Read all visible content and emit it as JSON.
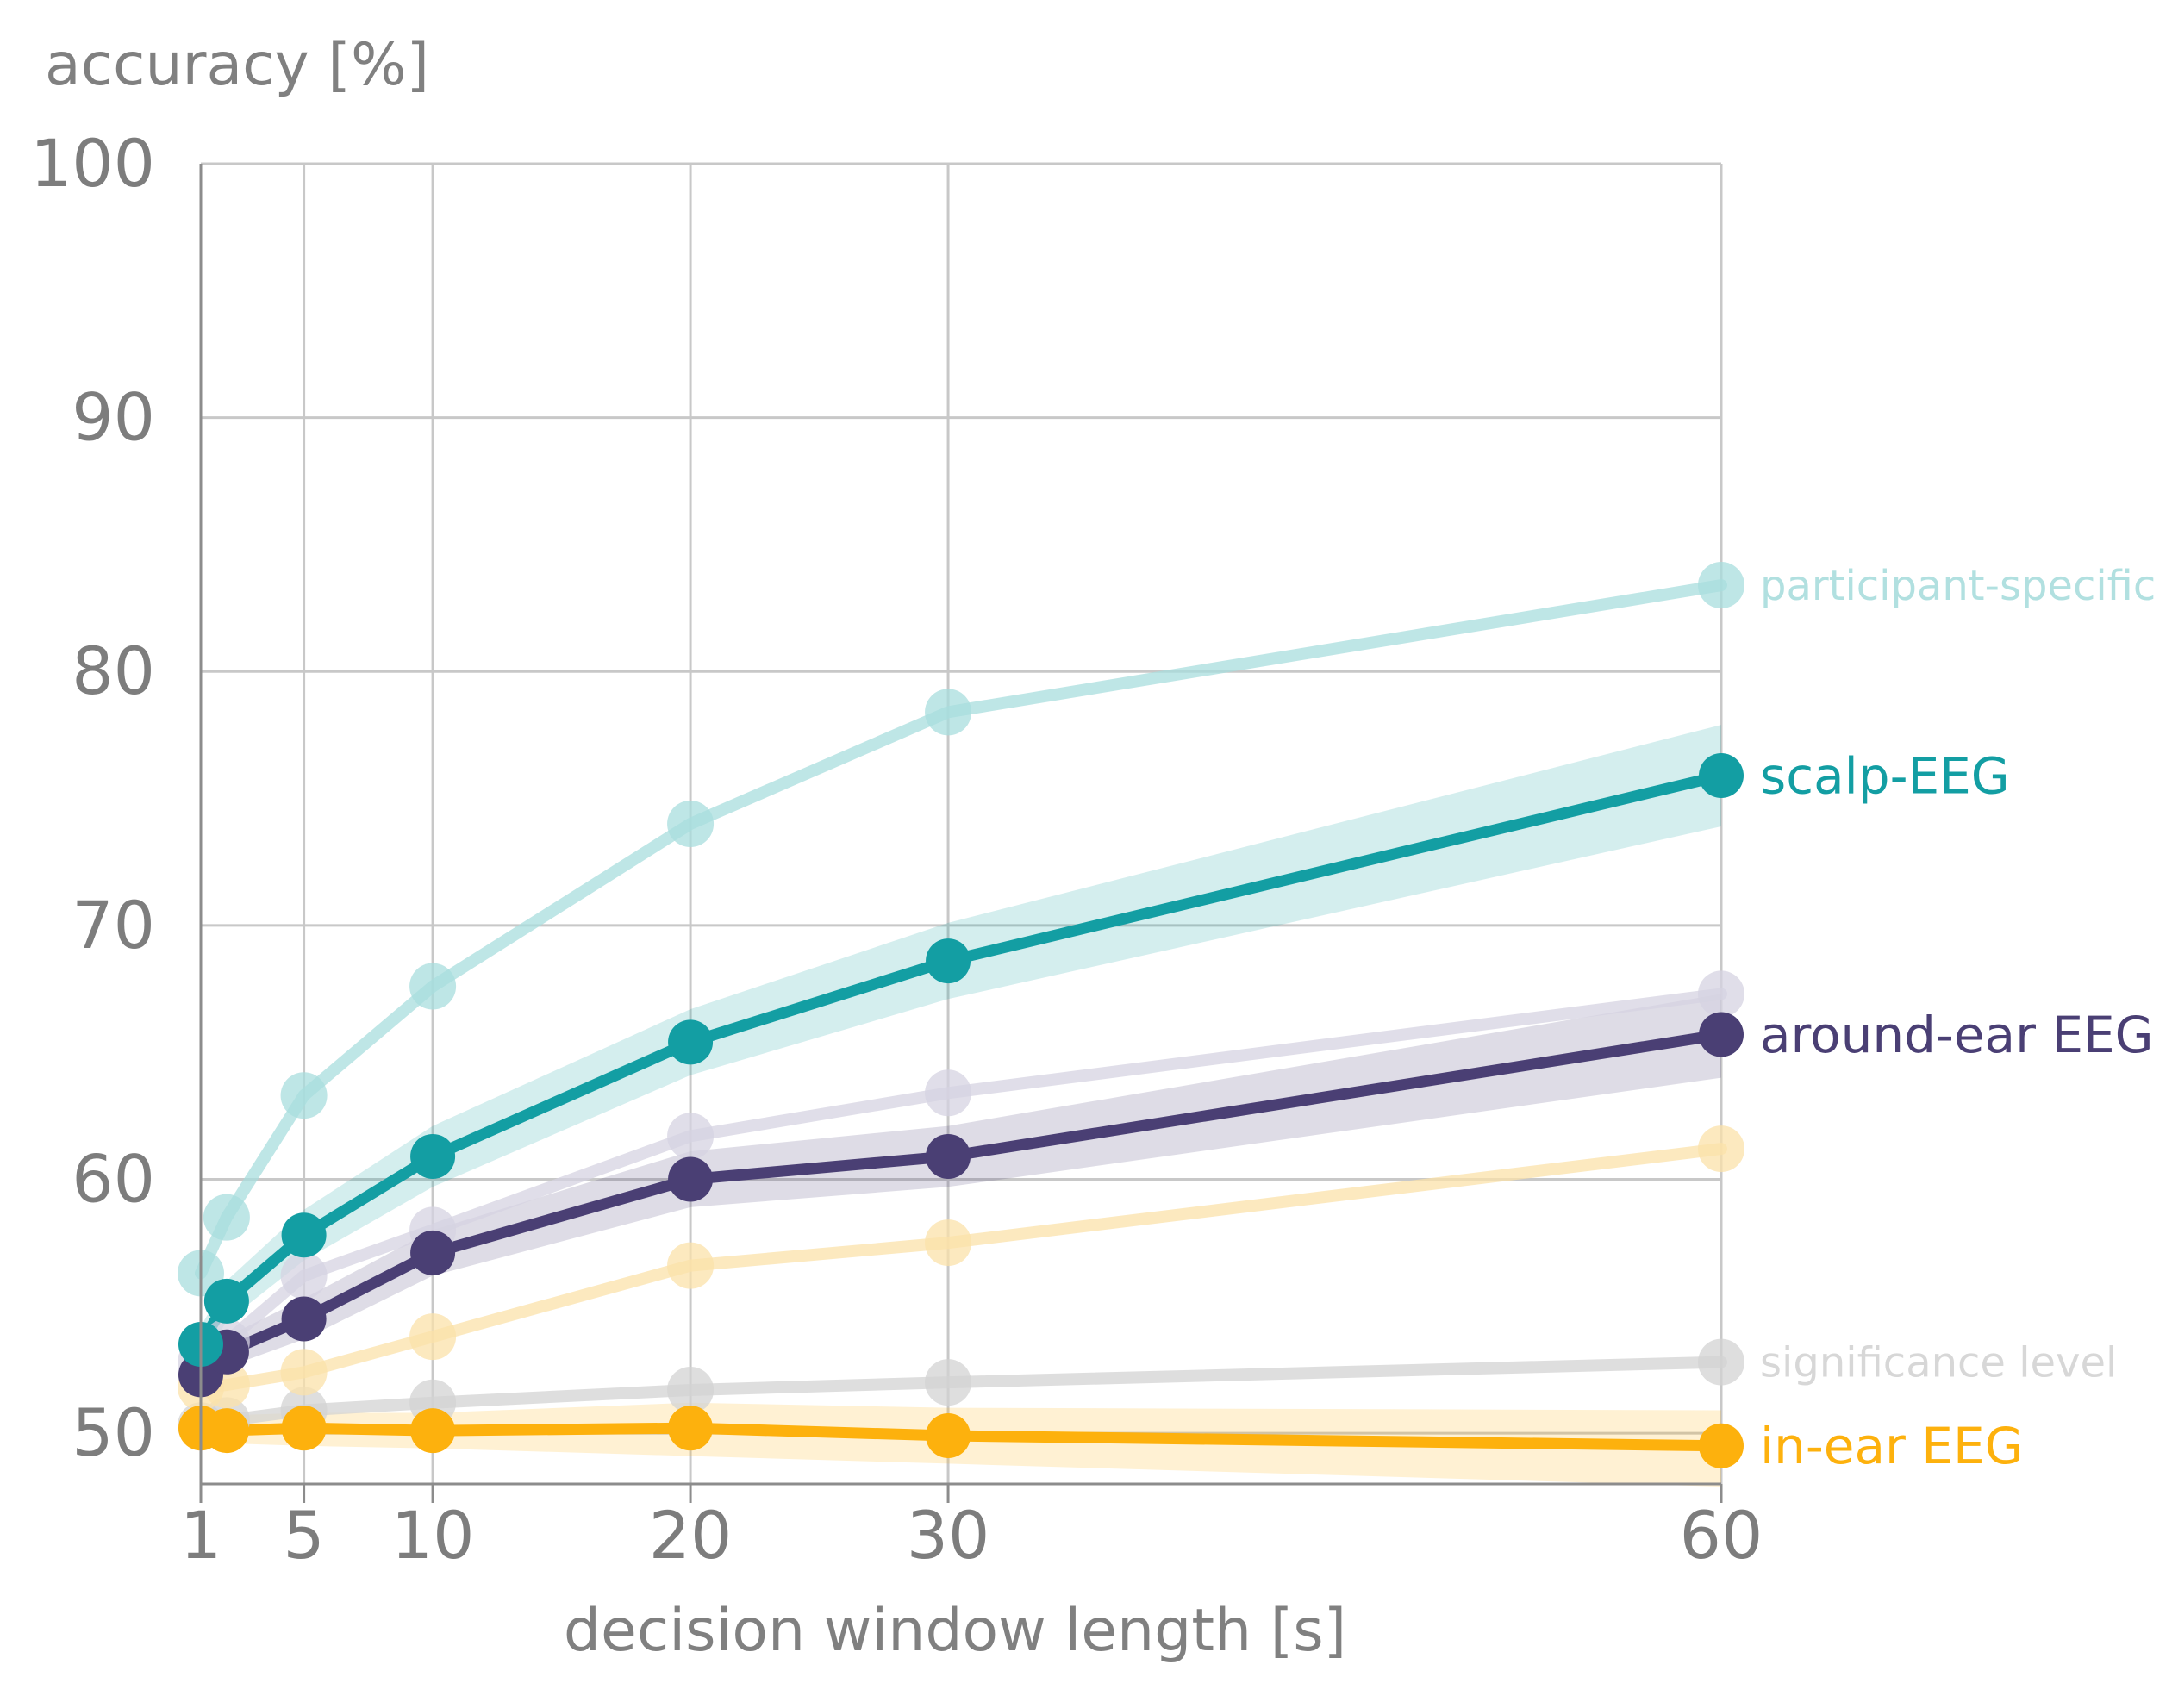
{
  "chart_data": {
    "type": "line",
    "title": "",
    "ylabel": "accuracy [%]",
    "xlabel": "decision window length [s]",
    "xlim": [
      1,
      60
    ],
    "ylim": [
      48,
      100
    ],
    "x": [
      1,
      2,
      5,
      10,
      20,
      30,
      60
    ],
    "xticks": [
      1,
      5,
      10,
      20,
      30,
      60
    ],
    "yticks": [
      50,
      60,
      70,
      80,
      90,
      100
    ],
    "grid": true,
    "series": [
      {
        "name": "significance level",
        "label": "significance level",
        "color": "#d3d3d3",
        "emphasis": "faint",
        "values": [
          50.3,
          50.5,
          50.9,
          51.2,
          51.7,
          52.0,
          52.8
        ],
        "band": null
      },
      {
        "name": "in-ear EEG (participant-specific)",
        "label": "",
        "color": "#fbe1aa",
        "emphasis": "faint",
        "values": [
          51.8,
          51.9,
          52.4,
          53.8,
          56.6,
          57.5,
          61.2
        ],
        "band": null
      },
      {
        "name": "around-ear EEG (participant-specific)",
        "label": "",
        "color": "#d6d3e2",
        "emphasis": "faint",
        "values": [
          52.8,
          53.6,
          56.2,
          58.0,
          61.7,
          63.4,
          67.3
        ],
        "band": null
      },
      {
        "name": "scalp-EEG (participant-specific)",
        "label": "participant-specific",
        "color": "#a8dddd",
        "emphasis": "faint",
        "values": [
          56.3,
          58.5,
          63.3,
          67.6,
          74.0,
          78.4,
          83.4
        ],
        "band": null
      },
      {
        "name": "in-ear EEG",
        "label": "in-ear EEG",
        "color": "#fdb10d",
        "emphasis": "strong",
        "values": [
          50.2,
          50.1,
          50.2,
          50.1,
          50.2,
          49.9,
          49.5
        ],
        "band": {
          "lower": [
            49.7,
            49.6,
            49.5,
            49.4,
            49.1,
            48.8,
            47.9
          ],
          "upper": [
            50.8,
            50.7,
            50.8,
            50.8,
            51.2,
            51.0,
            50.9
          ]
        }
      },
      {
        "name": "around-ear EEG",
        "label": "around-ear EEG",
        "color": "#4a3f74",
        "emphasis": "strong",
        "values": [
          52.3,
          53.2,
          54.5,
          57.1,
          60.0,
          60.9,
          65.7
        ],
        "band": {
          "lower": [
            51.8,
            52.6,
            53.7,
            56.2,
            58.9,
            59.7,
            64.0
          ],
          "upper": [
            52.9,
            53.8,
            55.3,
            58.0,
            61.1,
            62.1,
            67.3
          ]
        }
      },
      {
        "name": "scalp-EEG",
        "label": "scalp-EEG",
        "color": "#139ea3",
        "emphasis": "strong",
        "values": [
          53.5,
          55.2,
          57.8,
          60.9,
          65.4,
          68.6,
          75.9
        ],
        "band": {
          "lower": [
            52.8,
            54.4,
            56.8,
            59.7,
            64.1,
            67.1,
            73.9
          ],
          "upper": [
            54.2,
            56.0,
            58.8,
            62.1,
            66.7,
            70.1,
            77.9
          ]
        }
      }
    ]
  }
}
